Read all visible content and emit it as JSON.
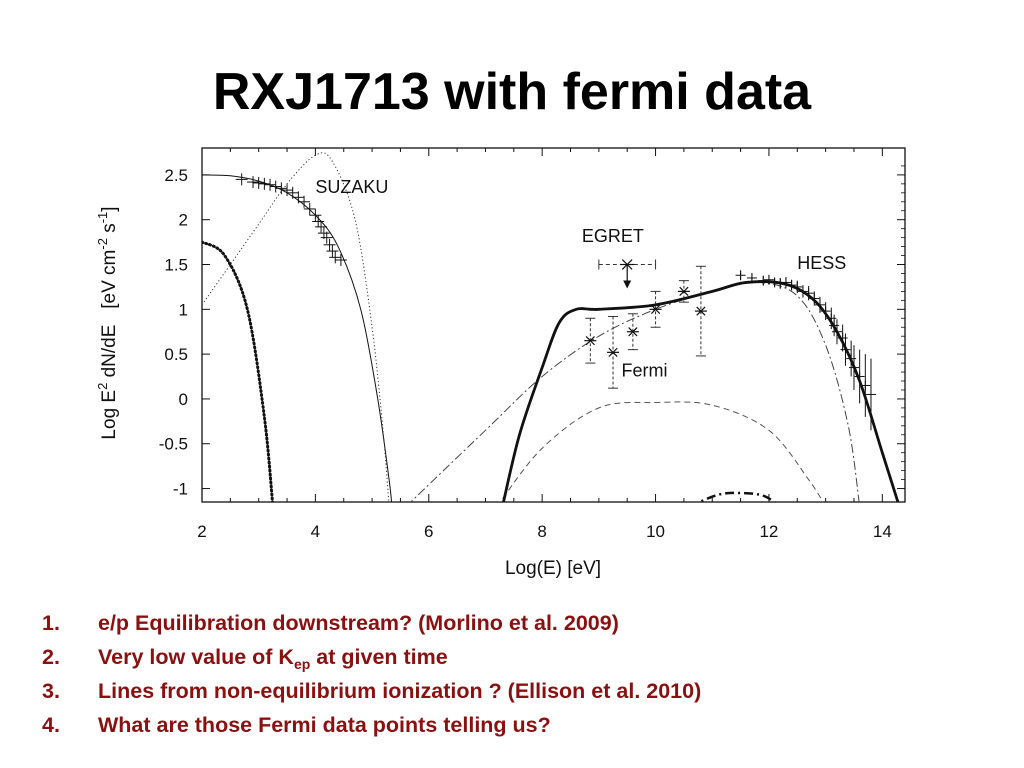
{
  "slide": {
    "title": "RXJ1713 with fermi data",
    "notes": [
      {
        "number": "1.",
        "text": "e/p Equilibration downstream? (Morlino et al. 2009)"
      },
      {
        "number": "2.",
        "text_before": "Very low value of K",
        "subscript": "ep",
        "text_after": " at given time"
      },
      {
        "number": "3.",
        "text": "Lines from non-equilibrium ionization ? (Ellison et al. 2010)"
      },
      {
        "number": "4.",
        "text": "What are those Fermi data points telling us?"
      }
    ]
  },
  "chart_data": {
    "type": "line",
    "xlabel": "Log(E)   [eV]",
    "ylabel_parts": [
      "Log E",
      "2",
      " dN/dE   [eV cm",
      "-2",
      " s",
      "-1",
      "]"
    ],
    "xlim": [
      2,
      14.4
    ],
    "ylim": [
      -1.15,
      2.8
    ],
    "xticks": [
      2,
      4,
      6,
      8,
      10,
      12,
      14
    ],
    "yticks": [
      2.5,
      2,
      1.5,
      1,
      0.5,
      0,
      -0.5,
      -1
    ],
    "ytick_labels": [
      "2.5",
      "2",
      "1.5",
      "1",
      "0.5",
      "0",
      "-0.5",
      "-1"
    ],
    "grid": false,
    "annotations": [
      {
        "text": "SUZAKU",
        "x": 4.0,
        "y": 2.3
      },
      {
        "text": "EGRET",
        "x": 8.7,
        "y": 1.75
      },
      {
        "text": "HESS",
        "x": 12.5,
        "y": 1.45
      },
      {
        "text": "Fermi",
        "x": 9.4,
        "y": 0.25
      }
    ],
    "series": [
      {
        "style": "thin-solid",
        "points": [
          [
            2,
            2.5
          ],
          [
            2.5,
            2.49
          ],
          [
            3,
            2.43
          ],
          [
            3.5,
            2.3
          ],
          [
            4,
            2.05
          ],
          [
            4.4,
            1.7
          ],
          [
            4.8,
            1.0
          ],
          [
            5.1,
            0.0
          ],
          [
            5.3,
            -0.9
          ],
          [
            5.35,
            -1.2
          ]
        ]
      },
      {
        "style": "dotted",
        "points": [
          [
            2,
            1.05
          ],
          [
            2.5,
            1.5
          ],
          [
            3,
            1.95
          ],
          [
            3.5,
            2.4
          ],
          [
            4,
            2.72
          ],
          [
            4.3,
            2.65
          ],
          [
            4.7,
            2.0
          ],
          [
            5.0,
            0.8
          ],
          [
            5.2,
            -0.4
          ],
          [
            5.3,
            -1.2
          ]
        ]
      },
      {
        "style": "heavy-dotted",
        "points": [
          [
            2,
            1.75
          ],
          [
            2.4,
            1.6
          ],
          [
            2.8,
            1.0
          ],
          [
            3.1,
            -0.2
          ],
          [
            3.25,
            -1.2
          ]
        ]
      },
      {
        "style": "dash-dot",
        "points": [
          [
            5.6,
            -1.2
          ],
          [
            7,
            -0.35
          ],
          [
            8,
            0.25
          ],
          [
            9,
            0.7
          ],
          [
            10,
            1.0
          ],
          [
            11,
            1.2
          ],
          [
            11.8,
            1.3
          ],
          [
            12.5,
            1.15
          ],
          [
            13,
            0.6
          ],
          [
            13.4,
            -0.3
          ],
          [
            13.6,
            -1.2
          ]
        ]
      },
      {
        "style": "dashed",
        "points": [
          [
            7.2,
            -1.2
          ],
          [
            8,
            -0.55
          ],
          [
            9,
            -0.1
          ],
          [
            10,
            -0.04
          ],
          [
            11,
            -0.07
          ],
          [
            12,
            -0.35
          ],
          [
            12.7,
            -0.9
          ],
          [
            13.0,
            -1.2
          ]
        ]
      },
      {
        "style": "heavy-dash-dot",
        "points": [
          [
            10.6,
            -1.2
          ],
          [
            11.1,
            -1.07
          ],
          [
            11.5,
            -1.05
          ],
          [
            11.9,
            -1.08
          ],
          [
            12.2,
            -1.2
          ]
        ]
      },
      {
        "style": "thick-solid",
        "points": [
          [
            7.3,
            -1.2
          ],
          [
            7.6,
            -0.4
          ],
          [
            8.0,
            0.35
          ],
          [
            8.3,
            0.85
          ],
          [
            8.6,
            1.0
          ],
          [
            9,
            1.0
          ],
          [
            10,
            1.05
          ],
          [
            11,
            1.2
          ],
          [
            11.6,
            1.3
          ],
          [
            12.3,
            1.28
          ],
          [
            12.8,
            1.1
          ],
          [
            13.2,
            0.75
          ],
          [
            13.6,
            0.2
          ],
          [
            14,
            -0.6
          ],
          [
            14.3,
            -1.2
          ]
        ]
      }
    ],
    "suzaku_points": {
      "x": [
        2.7,
        2.9,
        3.0,
        3.1,
        3.2,
        3.3,
        3.4,
        3.5,
        3.6,
        3.7,
        3.8,
        3.9,
        4.0,
        4.05,
        4.1,
        4.15,
        4.2,
        4.25,
        4.3,
        4.35,
        4.45
      ],
      "y": [
        2.45,
        2.42,
        2.41,
        2.4,
        2.39,
        2.37,
        2.35,
        2.33,
        2.3,
        2.25,
        2.2,
        2.12,
        2.05,
        1.98,
        1.92,
        1.85,
        1.8,
        1.72,
        1.65,
        1.58,
        1.55
      ]
    },
    "egret_point": {
      "x": 9.5,
      "y": 1.5,
      "xerr": 0.5,
      "label": "upper limit"
    },
    "fermi_points": {
      "x": [
        8.85,
        9.25,
        9.6,
        10.0,
        10.5,
        10.8
      ],
      "y": [
        0.65,
        0.52,
        0.75,
        1.0,
        1.2,
        0.98
      ],
      "yerr": [
        0.25,
        0.4,
        0.2,
        0.2,
        0.12,
        0.5
      ]
    },
    "hess_points": {
      "x": [
        11.5,
        11.7,
        11.9,
        12.0,
        12.1,
        12.2,
        12.3,
        12.4,
        12.5,
        12.6,
        12.7,
        12.8,
        12.9,
        13.0,
        13.1,
        13.15,
        13.2,
        13.3,
        13.35,
        13.45,
        13.5,
        13.6,
        13.7,
        13.8
      ],
      "y": [
        1.38,
        1.35,
        1.32,
        1.33,
        1.3,
        1.29,
        1.3,
        1.27,
        1.25,
        1.2,
        1.18,
        1.12,
        1.05,
        0.98,
        0.9,
        0.82,
        0.75,
        0.68,
        0.55,
        0.45,
        0.35,
        0.25,
        0.15,
        0.05
      ],
      "yerr": [
        0.05,
        0.05,
        0.05,
        0.05,
        0.05,
        0.06,
        0.06,
        0.06,
        0.07,
        0.07,
        0.08,
        0.08,
        0.09,
        0.1,
        0.12,
        0.12,
        0.14,
        0.15,
        0.18,
        0.2,
        0.25,
        0.3,
        0.35,
        0.4
      ]
    }
  }
}
